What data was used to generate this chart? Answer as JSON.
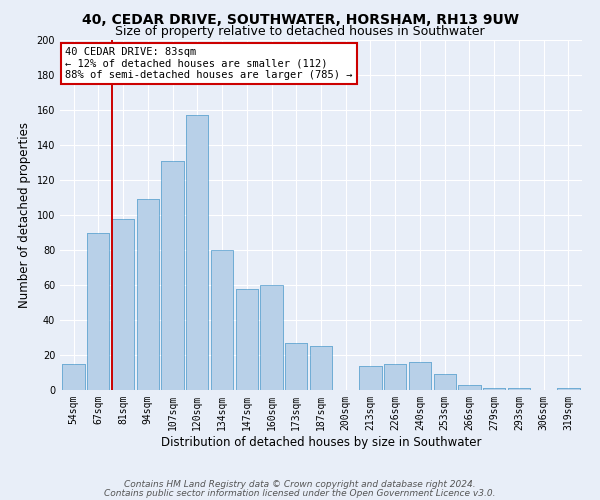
{
  "title1": "40, CEDAR DRIVE, SOUTHWATER, HORSHAM, RH13 9UW",
  "title2": "Size of property relative to detached houses in Southwater",
  "xlabel": "Distribution of detached houses by size in Southwater",
  "ylabel": "Number of detached properties",
  "footer1": "Contains HM Land Registry data © Crown copyright and database right 2024.",
  "footer2": "Contains public sector information licensed under the Open Government Licence v3.0.",
  "bar_labels": [
    "54sqm",
    "67sqm",
    "81sqm",
    "94sqm",
    "107sqm",
    "120sqm",
    "134sqm",
    "147sqm",
    "160sqm",
    "173sqm",
    "187sqm",
    "200sqm",
    "213sqm",
    "226sqm",
    "240sqm",
    "253sqm",
    "266sqm",
    "279sqm",
    "293sqm",
    "306sqm",
    "319sqm"
  ],
  "bar_values": [
    15,
    90,
    98,
    109,
    131,
    157,
    80,
    58,
    60,
    27,
    25,
    0,
    14,
    15,
    16,
    9,
    3,
    1,
    1,
    0,
    1
  ],
  "bar_color": "#b8d0e8",
  "bar_edge_color": "#6aaad4",
  "vline_x_index": 2,
  "vline_color": "#cc0000",
  "annotation_title": "40 CEDAR DRIVE: 83sqm",
  "annotation_line1": "← 12% of detached houses are smaller (112)",
  "annotation_line2": "88% of semi-detached houses are larger (785) →",
  "annotation_box_facecolor": "#ffffff",
  "annotation_box_edgecolor": "#cc0000",
  "ylim": [
    0,
    200
  ],
  "yticks": [
    0,
    20,
    40,
    60,
    80,
    100,
    120,
    140,
    160,
    180,
    200
  ],
  "bg_color": "#e8eef8",
  "plot_bg_color": "#e8eef8",
  "grid_color": "#ffffff",
  "title_fontsize": 10,
  "subtitle_fontsize": 9,
  "axis_label_fontsize": 8.5,
  "tick_fontsize": 7,
  "footer_fontsize": 6.5,
  "annotation_fontsize": 7.5
}
